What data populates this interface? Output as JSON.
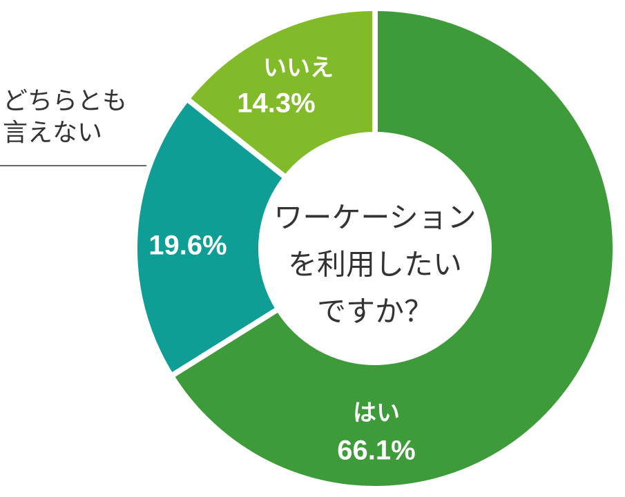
{
  "chart_data": {
    "type": "donut",
    "center_label": [
      "ワーケーション",
      "を利用したい",
      "ですか？"
    ],
    "categories": [
      "はい",
      "どちらとも言えない",
      "いいえ"
    ],
    "values": [
      66.1,
      19.6,
      14.3
    ],
    "value_labels": [
      "66.1%",
      "19.6%",
      "14.3%"
    ],
    "colors": [
      "#3d9b3a",
      "#0e9e96",
      "#82bb2a"
    ]
  }
}
